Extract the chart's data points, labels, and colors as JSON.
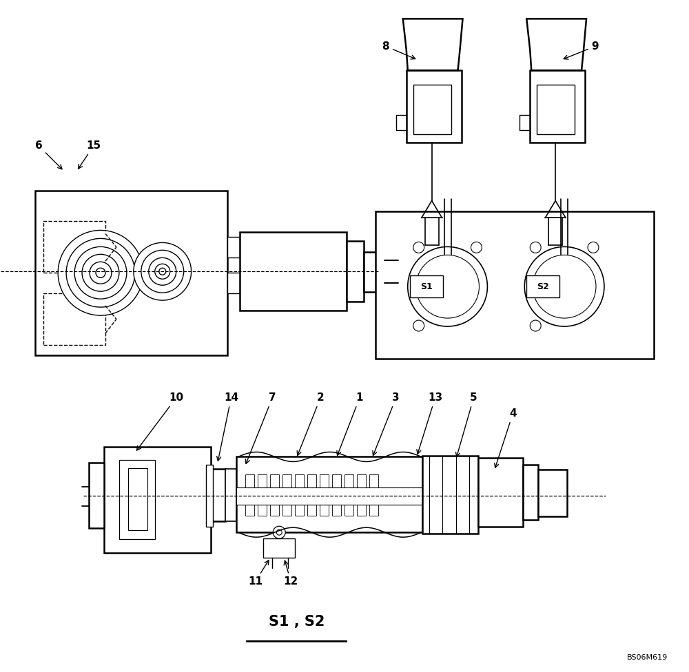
{
  "bg_color": "#ffffff",
  "line_color": "#000000",
  "title": "S1 , S2",
  "watermark": "BS06M619"
}
